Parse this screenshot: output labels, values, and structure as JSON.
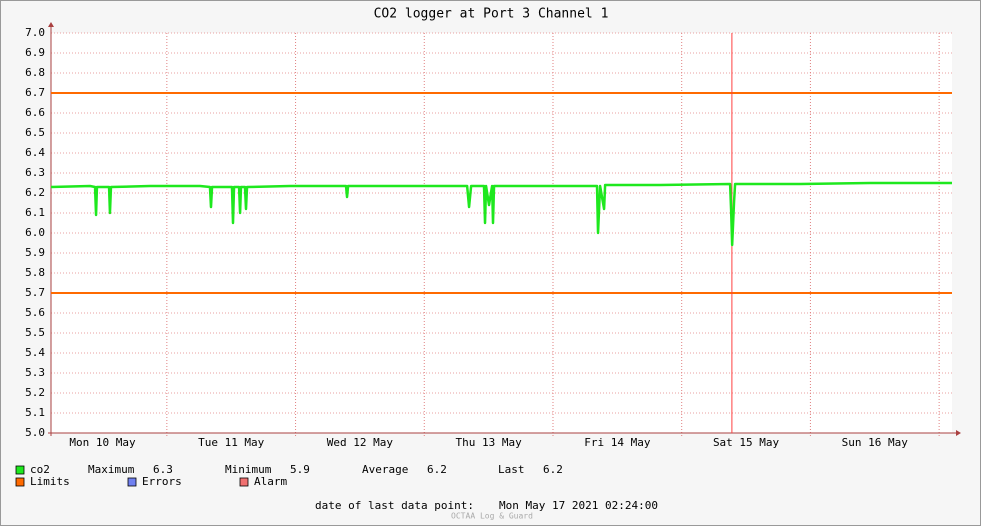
{
  "chart_data": {
    "type": "line",
    "title": "CO2 logger at Port 3 Channel 1",
    "x": [
      10.1,
      10.403,
      10.442,
      10.45,
      10.457,
      10.551,
      10.558,
      10.566,
      10.869,
      11.258,
      11.335,
      11.343,
      11.351,
      11.506,
      11.514,
      11.522,
      11.561,
      11.569,
      11.576,
      11.607,
      11.615,
      11.623,
      11.957,
      12.392,
      12.4,
      12.408,
      12.812,
      13.333,
      13.348,
      13.364,
      13.464,
      13.472,
      13.48,
      13.503,
      13.527,
      13.534,
      13.542,
      13.977,
      14.342,
      14.35,
      14.366,
      14.397,
      14.405,
      14.832,
      15.376,
      15.384,
      15.392,
      15.407,
      15.415,
      15.92,
      16.464,
      17.1
    ],
    "series": [
      {
        "name": "co2",
        "color": "#1ee81e",
        "values": [
          6.23,
          6.235,
          6.23,
          6.09,
          6.23,
          6.23,
          6.1,
          6.23,
          6.235,
          6.235,
          6.23,
          6.13,
          6.23,
          6.23,
          6.05,
          6.23,
          6.23,
          6.1,
          6.23,
          6.23,
          6.12,
          6.23,
          6.235,
          6.235,
          6.18,
          6.235,
          6.235,
          6.235,
          6.13,
          6.235,
          6.235,
          6.05,
          6.235,
          6.14,
          6.235,
          6.05,
          6.235,
          6.235,
          6.235,
          6.0,
          6.235,
          6.12,
          6.24,
          6.24,
          6.245,
          6.11,
          5.94,
          6.16,
          6.245,
          6.245,
          6.25,
          6.25
        ]
      }
    ],
    "limits": {
      "name": "Limits",
      "color": "#ff6a00",
      "values": [
        6.7,
        5.7
      ]
    },
    "legend_extra": [
      {
        "name": "Errors",
        "color": "#7080f0"
      },
      {
        "name": "Alarm",
        "color": "#f07070"
      }
    ],
    "vline": 15.39,
    "xlim": [
      10.1,
      17.1
    ],
    "xticks": [
      {
        "value": 10.5,
        "label": "Mon 10 May"
      },
      {
        "value": 11.5,
        "label": "Tue 11 May"
      },
      {
        "value": 12.5,
        "label": "Wed 12 May"
      },
      {
        "value": 13.5,
        "label": "Thu 13 May"
      },
      {
        "value": 14.5,
        "label": "Fri 14 May"
      },
      {
        "value": 15.5,
        "label": "Sat 15 May"
      },
      {
        "value": 16.5,
        "label": "Sun 16 May"
      }
    ],
    "xgrid": [
      11,
      12,
      13,
      14,
      15,
      16,
      17
    ],
    "ylim": [
      5,
      7
    ],
    "yticks": [
      {
        "value": 5,
        "label": "5.0"
      },
      5.1,
      5.2,
      5.3,
      5.4,
      5.5,
      5.6,
      5.7,
      5.8,
      5.9,
      {
        "value": 6,
        "label": "6.0"
      },
      6.1,
      6.2,
      6.3,
      6.4,
      6.5,
      6.6,
      6.7,
      6.8,
      6.9,
      {
        "value": 7,
        "label": "7.0"
      }
    ],
    "grid": true,
    "stats": [
      {
        "label": "Maximum",
        "value": 6.3
      },
      {
        "label": "Minimum",
        "value": 5.9
      },
      {
        "label": "Average",
        "value": 6.2
      },
      {
        "label": "Last",
        "value": 6.2
      }
    ],
    "footer": {
      "label": "date of last data point:",
      "value": "Mon May 17 2021 02:24:00"
    },
    "watermark": "OCTAA Log & Guard"
  }
}
